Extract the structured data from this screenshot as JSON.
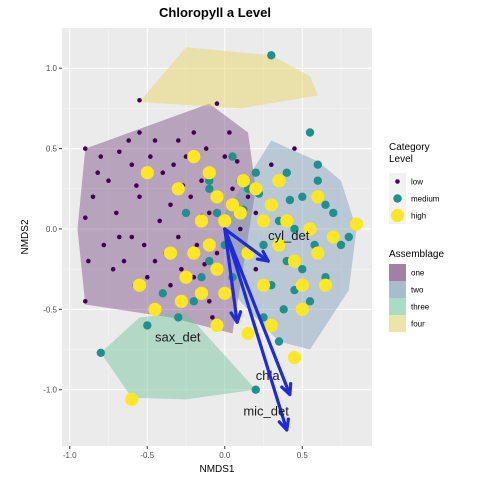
{
  "chart_data": {
    "type": "scatter",
    "title": "Chloropyll a Level",
    "xlabel": "NMDS1",
    "ylabel": "NMDS2",
    "xlim": [
      -1.05,
      0.95
    ],
    "ylim": [
      -1.35,
      1.25
    ],
    "x_ticks": [
      -1.0,
      -0.5,
      0.0,
      0.5
    ],
    "x_tick_labels": [
      "-1.0",
      "-0.5",
      "0.0",
      "0.5"
    ],
    "y_ticks": [
      -1.0,
      -0.5,
      0.0,
      0.5,
      1.0
    ],
    "y_tick_labels": [
      "-1.0",
      "-0.5",
      "0.0",
      "0.5",
      "1.0"
    ],
    "grid": true,
    "legend_position": "right",
    "category_legend": {
      "title_lines": [
        "Category",
        "Level"
      ],
      "entries": [
        {
          "label": "low",
          "color": "#440154"
        },
        {
          "label": "medium",
          "color": "#21908C"
        },
        {
          "label": "high",
          "color": "#FDE725"
        }
      ]
    },
    "assemblage_legend": {
      "title": "Assemblage",
      "entries": [
        {
          "label": "one",
          "color": "#a180a8"
        },
        {
          "label": "two",
          "color": "#a7bccc"
        },
        {
          "label": "three",
          "color": "#a8dcc4"
        },
        {
          "label": "four",
          "color": "#ede4a6"
        }
      ]
    },
    "hulls": [
      {
        "name": "one",
        "color": "#7b4b86",
        "points": [
          [
            -0.9,
            0.5
          ],
          [
            -0.1,
            0.78
          ],
          [
            0.15,
            0.6
          ],
          [
            0.2,
            0.25
          ],
          [
            0.05,
            -0.65
          ],
          [
            -0.35,
            -0.55
          ],
          [
            -0.9,
            -0.47
          ],
          [
            -0.95,
            0.0
          ]
        ]
      },
      {
        "name": "two",
        "color": "#7d9eb8",
        "points": [
          [
            0.15,
            0.32
          ],
          [
            0.3,
            0.55
          ],
          [
            0.6,
            0.42
          ],
          [
            0.75,
            0.3
          ],
          [
            0.85,
            0.0
          ],
          [
            0.8,
            -0.38
          ],
          [
            0.55,
            -0.75
          ],
          [
            0.35,
            -0.7
          ],
          [
            0.05,
            -0.4
          ],
          [
            0.0,
            0.1
          ]
        ]
      },
      {
        "name": "three",
        "color": "#6fc39a",
        "points": [
          [
            -0.8,
            -0.77
          ],
          [
            -0.55,
            -0.55
          ],
          [
            -0.25,
            -0.52
          ],
          [
            0.2,
            -1.0
          ],
          [
            -0.25,
            -1.06
          ],
          [
            -0.6,
            -1.05
          ]
        ]
      },
      {
        "name": "four",
        "color": "#e6d35c",
        "points": [
          [
            -0.25,
            1.13
          ],
          [
            0.3,
            1.08
          ],
          [
            0.55,
            0.95
          ],
          [
            0.6,
            0.83
          ],
          [
            0.1,
            0.75
          ],
          [
            -0.55,
            0.79
          ]
        ]
      }
    ],
    "series": [
      {
        "name": "low",
        "color": "#440154",
        "size": "small",
        "points": [
          [
            -0.9,
            0.5
          ],
          [
            -0.85,
            0.2
          ],
          [
            -0.9,
            0.07
          ],
          [
            -0.9,
            -0.45
          ],
          [
            -0.8,
            0.45
          ],
          [
            -0.75,
            0.3
          ],
          [
            -0.7,
            0.1
          ],
          [
            -0.68,
            -0.05
          ],
          [
            -0.65,
            -0.2
          ],
          [
            -0.6,
            0.4
          ],
          [
            -0.55,
            0.2
          ],
          [
            -0.52,
            -0.1
          ],
          [
            -0.5,
            -0.3
          ],
          [
            -0.45,
            0.55
          ],
          [
            -0.4,
            0.35
          ],
          [
            -0.35,
            0.15
          ],
          [
            -0.3,
            -0.05
          ],
          [
            -0.28,
            -0.25
          ],
          [
            -0.25,
            0.45
          ],
          [
            -0.2,
            0.6
          ],
          [
            -0.15,
            0.3
          ],
          [
            -0.1,
            0.1
          ],
          [
            -0.05,
            -0.15
          ],
          [
            0.0,
            0.45
          ],
          [
            0.05,
            0.25
          ],
          [
            0.1,
            0.0
          ],
          [
            -0.58,
            -0.35
          ],
          [
            -0.62,
            0.55
          ],
          [
            -0.72,
            -0.25
          ],
          [
            -0.78,
            -0.1
          ],
          [
            -0.42,
            0.05
          ],
          [
            -0.38,
            -0.15
          ],
          [
            -0.33,
            0.4
          ],
          [
            -0.22,
            0.2
          ],
          [
            -0.18,
            -0.1
          ],
          [
            -0.12,
            0.5
          ],
          [
            -0.08,
            0.35
          ],
          [
            0.03,
            0.6
          ],
          [
            -0.55,
            0.6
          ],
          [
            -0.48,
            0.45
          ],
          [
            -0.3,
            0.55
          ],
          [
            -0.6,
            -0.05
          ],
          [
            -0.45,
            -0.2
          ],
          [
            -0.2,
            -0.3
          ],
          [
            -0.1,
            -0.45
          ],
          [
            0.15,
            0.2
          ],
          [
            0.2,
            0.1
          ],
          [
            0.3,
            0.4
          ],
          [
            0.35,
            0.3
          ],
          [
            0.45,
            0.5
          ],
          [
            -0.57,
            0.27
          ],
          [
            -0.27,
            0.27
          ],
          [
            -0.13,
            -0.22
          ],
          [
            -0.88,
            -0.2
          ],
          [
            -0.82,
            0.35
          ],
          [
            -0.68,
            0.48
          ],
          [
            -0.35,
            -0.35
          ],
          [
            -0.15,
            0.08
          ],
          [
            0.08,
            0.42
          ],
          [
            -0.05,
            0.78
          ],
          [
            -0.55,
            0.8
          ],
          [
            0.2,
            -0.25
          ],
          [
            -0.08,
            -0.55
          ]
        ]
      },
      {
        "name": "medium",
        "color": "#21908C",
        "size": "medium",
        "points": [
          [
            0.3,
            1.08
          ],
          [
            0.55,
            0.6
          ],
          [
            0.6,
            0.4
          ],
          [
            0.5,
            0.2
          ],
          [
            0.45,
            0.0
          ],
          [
            0.4,
            -0.2
          ],
          [
            0.3,
            0.15
          ],
          [
            0.25,
            -0.1
          ],
          [
            0.2,
            0.35
          ],
          [
            0.15,
            0.25
          ],
          [
            0.7,
            0.1
          ],
          [
            0.75,
            -0.1
          ],
          [
            0.65,
            -0.3
          ],
          [
            0.55,
            -0.45
          ],
          [
            0.35,
            -0.7
          ],
          [
            0.25,
            -0.55
          ],
          [
            -0.1,
            0.3
          ],
          [
            -0.05,
            0.1
          ],
          [
            0.0,
            -0.1
          ],
          [
            -0.15,
            -0.3
          ],
          [
            -0.2,
            -0.45
          ],
          [
            -0.8,
            -0.77
          ],
          [
            -0.5,
            -0.6
          ],
          [
            0.2,
            -1.0
          ],
          [
            -0.1,
            0.25
          ],
          [
            0.4,
            0.35
          ],
          [
            0.6,
            0.3
          ],
          [
            0.05,
            0.45
          ],
          [
            0.1,
            0.3
          ],
          [
            -0.3,
            -0.55
          ],
          [
            0.35,
            0.05
          ],
          [
            0.5,
            -0.25
          ],
          [
            0.65,
            0.15
          ],
          [
            0.8,
            -0.05
          ],
          [
            0.3,
            -0.35
          ],
          [
            -0.1,
            -0.2
          ],
          [
            -0.25,
            0.1
          ],
          [
            0.05,
            -0.3
          ],
          [
            0.12,
            0.12
          ],
          [
            0.22,
            0.22
          ],
          [
            0.42,
            0.18
          ],
          [
            0.58,
            -0.1
          ],
          [
            0.38,
            -0.5
          ],
          [
            -0.4,
            -0.4
          ],
          [
            0.45,
            -0.38
          ]
        ]
      },
      {
        "name": "high",
        "color": "#FDE725",
        "size": "large",
        "points": [
          [
            -0.6,
            -1.06
          ],
          [
            -0.5,
            0.35
          ],
          [
            -0.45,
            -0.5
          ],
          [
            -0.35,
            -0.15
          ],
          [
            -0.25,
            -0.3
          ],
          [
            -0.2,
            0.45
          ],
          [
            -0.15,
            -0.4
          ],
          [
            -0.1,
            -0.1
          ],
          [
            -0.05,
            0.2
          ],
          [
            0.0,
            0.05
          ],
          [
            -0.05,
            -0.25
          ],
          [
            0.1,
            0.1
          ],
          [
            0.15,
            -0.15
          ],
          [
            0.2,
            0.25
          ],
          [
            0.25,
            -0.35
          ],
          [
            0.3,
            0.15
          ],
          [
            0.35,
            -0.1
          ],
          [
            0.4,
            0.05
          ],
          [
            0.45,
            -0.2
          ],
          [
            0.5,
            -0.5
          ],
          [
            0.55,
            0.0
          ],
          [
            0.6,
            -0.15
          ],
          [
            0.65,
            -0.35
          ],
          [
            0.7,
            -0.05
          ],
          [
            0.85,
            0.03
          ],
          [
            -0.3,
            0.25
          ],
          [
            -0.28,
            -0.45
          ],
          [
            -0.05,
            -0.6
          ],
          [
            0.45,
            -0.8
          ],
          [
            0.05,
            0.15
          ],
          [
            -0.15,
            0.05
          ],
          [
            0.3,
            -0.6
          ],
          [
            0.15,
            -0.65
          ],
          [
            0.35,
            0.3
          ],
          [
            -0.55,
            -0.35
          ],
          [
            0.5,
            -0.35
          ],
          [
            -0.2,
            -0.15
          ],
          [
            0.0,
            -0.4
          ],
          [
            0.25,
            0.05
          ],
          [
            -0.1,
            0.35
          ],
          [
            0.12,
            0.3
          ],
          [
            0.6,
            0.2
          ]
        ]
      }
    ],
    "vectors": [
      {
        "label": "cyl_det",
        "end": [
          0.28,
          -0.2
        ],
        "label_pos": [
          0.28,
          -0.07
        ]
      },
      {
        "label": "sax_det",
        "end": [
          0.08,
          -0.58
        ],
        "label_pos": [
          -0.45,
          -0.7
        ]
      },
      {
        "label": "chla",
        "end": [
          0.42,
          -1.03
        ],
        "label_pos": [
          0.2,
          -0.94
        ]
      },
      {
        "label": "mic_det",
        "end": [
          0.4,
          -1.25
        ],
        "label_pos": [
          0.12,
          -1.16
        ]
      }
    ],
    "vector_origin": [
      0.0,
      0.0
    ]
  }
}
